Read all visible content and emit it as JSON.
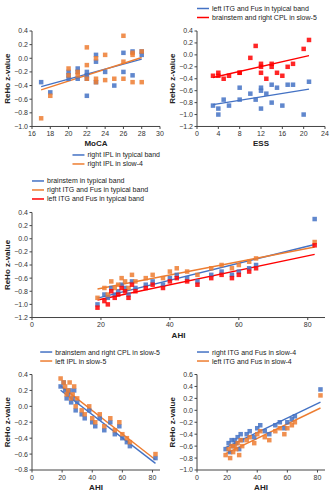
{
  "chart_data": [
    {
      "type": "scatter",
      "x_label": "MoCA",
      "y_label": "ReHo z-value",
      "xlim": [
        16,
        30
      ],
      "ylim": [
        -1.0,
        0.4
      ],
      "xticks": [
        16,
        18,
        20,
        22,
        24,
        26,
        28,
        30
      ],
      "yticks": [
        {
          "value": -1.0,
          "label": "−1.0"
        },
        {
          "value": -0.8,
          "label": "−0.8"
        },
        {
          "value": -0.6,
          "label": "−0.6"
        },
        {
          "value": -0.4,
          "label": "−0.4"
        },
        {
          "value": -0.2,
          "label": "−0.2"
        },
        {
          "value": 0.0,
          "label": "0.0"
        },
        0.2,
        0.4
      ],
      "legend": "lower right",
      "series": [
        {
          "type": "scatter",
          "marker": "square",
          "color": "#4472C4",
          "x": [
            17,
            18,
            20,
            20,
            20,
            21,
            21,
            21,
            22,
            22,
            22,
            22,
            23,
            23,
            23,
            24,
            25,
            26,
            26,
            27,
            27,
            28,
            28
          ],
          "values": [
            -0.35,
            -0.5,
            -0.25,
            -0.2,
            -0.3,
            -0.15,
            -0.2,
            -0.3,
            -0.2,
            -0.3,
            -0.25,
            -0.55,
            -0.35,
            0.05,
            -0.05,
            -0.2,
            -0.4,
            -0.2,
            0.08,
            -0.25,
            0.1,
            0.05,
            0.1
          ]
        },
        {
          "type": "line",
          "name": "right IPL in typical band",
          "color": "#4472C4",
          "x": [
            17,
            28
          ],
          "values": [
            -0.4158,
            -0.013
          ]
        },
        {
          "type": "scatter",
          "marker": "square",
          "color": "#ED7D31",
          "x": [
            17,
            18,
            20,
            20,
            21,
            21,
            22,
            22,
            22,
            23,
            23,
            23,
            24,
            24,
            25,
            26,
            26,
            26,
            27,
            27,
            27,
            28,
            28
          ],
          "values": [
            -0.88,
            -0.55,
            -0.25,
            -0.15,
            -0.25,
            -0.2,
            -0.3,
            0.16,
            -0.1,
            0.0,
            -0.35,
            -0.3,
            -0.32,
            0.05,
            -0.3,
            0.33,
            -0.3,
            -0.05,
            0.08,
            -0.35,
            0.05,
            0.1,
            -0.35
          ]
        },
        {
          "type": "line",
          "name": "right IPL in slow-4",
          "color": "#ED7D31",
          "x": [
            17,
            28
          ],
          "values": [
            -0.4642,
            0.0117
          ]
        }
      ]
    },
    {
      "type": "scatter",
      "x_label": "ESS",
      "y_label": "ReHo z-value",
      "xlim": [
        0,
        24
      ],
      "ylim": [
        -1.2,
        0.4
      ],
      "xticks": [
        0,
        4,
        8,
        12,
        16,
        20,
        24
      ],
      "yticks": [
        {
          "value": -1.2,
          "label": "−1.2"
        },
        {
          "value": -1.0,
          "label": "−1.0"
        },
        {
          "value": -0.8,
          "label": "−0.8"
        },
        {
          "value": -0.6,
          "label": "−0.6"
        },
        {
          "value": -0.4,
          "label": "−0.4"
        },
        {
          "value": -0.2,
          "label": "−0.2"
        },
        {
          "value": 0.0,
          "label": "0.0"
        },
        0.2,
        0.4
      ],
      "legend": "upper left",
      "series": [
        {
          "type": "scatter",
          "marker": "square",
          "color": "#4472C4",
          "x": [
            3,
            4,
            4,
            5,
            6,
            8,
            8,
            10,
            11,
            12,
            12,
            12,
            13,
            14,
            14,
            15,
            16,
            17,
            18,
            20,
            21
          ],
          "values": [
            -0.85,
            -0.9,
            -1.0,
            -0.75,
            -0.85,
            -0.75,
            -0.55,
            -0.65,
            -0.75,
            -0.6,
            -0.55,
            -0.9,
            -0.65,
            -0.8,
            -0.5,
            -0.55,
            -0.85,
            -0.5,
            -0.5,
            -1.0,
            -0.45
          ]
        },
        {
          "type": "line",
          "name": "left ITG and Fus in typical band",
          "color": "#4472C4",
          "x": [
            3,
            21
          ],
          "values": [
            -0.8337,
            -0.573
          ]
        },
        {
          "type": "scatter",
          "marker": "square",
          "color": "#FF0000",
          "x": [
            3,
            4,
            4,
            5,
            6,
            8,
            8,
            10,
            11,
            12,
            12,
            12,
            13,
            14,
            14,
            15,
            16,
            17,
            18,
            20,
            21
          ],
          "values": [
            -0.35,
            -0.35,
            -0.3,
            -0.4,
            -0.35,
            -0.3,
            -0.3,
            -0.05,
            0.15,
            -0.3,
            -0.15,
            -0.2,
            -0.4,
            -0.2,
            -0.15,
            -0.3,
            -0.35,
            -0.2,
            -0.15,
            0.1,
            0.25
          ]
        },
        {
          "type": "line",
          "name": "brainstem and right CPL in slow-5",
          "color": "#FF0000",
          "x": [
            3,
            21
          ],
          "values": [
            -0.3787,
            -0.0135
          ]
        }
      ]
    },
    {
      "type": "scatter",
      "x_label": "AHI",
      "y_label": "ReHo z-value",
      "xlim": [
        0,
        85
      ],
      "ylim": [
        -1.2,
        0.4
      ],
      "xticks": [
        0,
        20,
        40,
        60,
        80
      ],
      "yticks": [
        {
          "value": -1.2,
          "label": "−1.2"
        },
        {
          "value": -1.0,
          "label": "−1.0"
        },
        {
          "value": -0.8,
          "label": "−0.8"
        },
        {
          "value": -0.6,
          "label": "−0.6"
        },
        {
          "value": -0.4,
          "label": "−0.4"
        },
        {
          "value": -0.2,
          "label": "−0.2"
        },
        {
          "value": 0.0,
          "label": "0.0"
        },
        0.2,
        0.4
      ],
      "legend": "upper left",
      "series": [
        {
          "type": "scatter",
          "marker": "square",
          "color": "#4472C4",
          "x": [
            19,
            21,
            22,
            23,
            24,
            25,
            26,
            27,
            28,
            29,
            30,
            33,
            35,
            38,
            40,
            42,
            45,
            48,
            52,
            55,
            58,
            60,
            63,
            65,
            82
          ],
          "values": [
            -1.0,
            -0.85,
            -0.9,
            -0.75,
            -0.85,
            -0.8,
            -0.7,
            -0.75,
            -0.85,
            -0.65,
            -0.75,
            -0.7,
            -0.65,
            -0.7,
            -0.6,
            -0.55,
            -0.6,
            -0.65,
            -0.55,
            -0.5,
            -0.55,
            -0.5,
            -0.45,
            -0.4,
            0.3
          ]
        },
        {
          "type": "line",
          "name": "brainstem in typical band",
          "color": "#4472C4",
          "x": [
            19,
            82
          ],
          "values": [
            -0.9051,
            -0.0882
          ]
        },
        {
          "type": "scatter",
          "marker": "square",
          "color": "#ED7D31",
          "x": [
            19,
            21,
            22,
            23,
            24,
            25,
            26,
            27,
            28,
            29,
            30,
            33,
            35,
            38,
            40,
            42,
            45,
            48,
            52,
            55,
            58,
            60,
            63,
            65,
            82
          ],
          "values": [
            -0.9,
            -0.75,
            -0.85,
            -0.65,
            -0.75,
            -0.7,
            -0.6,
            -0.65,
            -0.75,
            -0.55,
            -0.65,
            -0.6,
            -0.55,
            -0.6,
            -0.5,
            -0.45,
            -0.5,
            -0.55,
            -0.45,
            -0.4,
            -0.45,
            -0.4,
            -0.35,
            -0.3,
            -0.05
          ]
        },
        {
          "type": "line",
          "name": "right ITG and Fus in typical band",
          "color": "#ED7D31",
          "x": [
            19,
            82
          ],
          "values": [
            -0.7653,
            -0.1251
          ]
        },
        {
          "type": "scatter",
          "marker": "square",
          "color": "#FF0000",
          "x": [
            19,
            21,
            22,
            23,
            24,
            25,
            26,
            27,
            28,
            29,
            30,
            33,
            35,
            38,
            40,
            42,
            45,
            48,
            52,
            55,
            58,
            60,
            63,
            65,
            82
          ],
          "values": [
            -1.05,
            -0.95,
            -1.0,
            -0.8,
            -0.9,
            -0.85,
            -0.75,
            -0.8,
            -0.9,
            -0.7,
            -0.8,
            -0.75,
            -0.7,
            -0.75,
            -0.65,
            -0.6,
            -0.65,
            -0.7,
            -0.6,
            -0.55,
            -0.6,
            -0.55,
            -0.5,
            -0.45,
            -0.1
          ]
        },
        {
          "type": "line",
          "name": "left ITG and Fus in typical band",
          "color": "#FF0000",
          "x": [
            19,
            82
          ],
          "values": [
            -0.9336,
            -0.2374
          ]
        }
      ]
    },
    {
      "type": "scatter",
      "x_label": "AHI",
      "y_label": "ReHo z-value",
      "xlim": [
        0,
        85
      ],
      "ylim": [
        -0.8,
        0.4
      ],
      "xticks": [
        0,
        20,
        40,
        60,
        80
      ],
      "yticks": [
        {
          "value": -0.8,
          "label": "−0.8"
        },
        {
          "value": -0.6,
          "label": "−0.6"
        },
        {
          "value": -0.4,
          "label": "−0.4"
        },
        {
          "value": -0.2,
          "label": "−0.2"
        },
        {
          "value": 0.0,
          "label": "0.0"
        },
        0.2,
        0.4
      ],
      "legend": "upper right",
      "series": [
        {
          "type": "scatter",
          "marker": "square",
          "color": "#4472C4",
          "x": [
            19,
            21,
            22,
            23,
            24,
            25,
            26,
            27,
            28,
            29,
            30,
            33,
            35,
            38,
            40,
            42,
            45,
            48,
            52,
            55,
            58,
            60,
            63,
            65,
            82
          ],
          "values": [
            0.25,
            0.3,
            0.2,
            0.1,
            0.15,
            0.2,
            0.05,
            0.1,
            0.2,
            -0.05,
            0.05,
            -0.1,
            -0.15,
            -0.05,
            -0.2,
            -0.25,
            -0.15,
            -0.3,
            -0.2,
            -0.35,
            -0.25,
            -0.4,
            -0.45,
            -0.5,
            -0.65
          ]
        },
        {
          "type": "line",
          "name": "brainstem and right CPL in slow-5",
          "color": "#4472C4",
          "x": [
            19,
            82
          ],
          "values": [
            0.2029,
            -0.7173
          ]
        },
        {
          "type": "scatter",
          "marker": "square",
          "color": "#ED7D31",
          "x": [
            19,
            21,
            22,
            23,
            24,
            25,
            26,
            27,
            28,
            29,
            30,
            33,
            35,
            38,
            40,
            42,
            45,
            48,
            52,
            55,
            58,
            60,
            63,
            65,
            82
          ],
          "values": [
            0.35,
            0.3,
            0.25,
            0.15,
            0.2,
            0.3,
            0.1,
            0.15,
            0.25,
            0.0,
            0.1,
            -0.05,
            -0.1,
            0.0,
            -0.15,
            -0.2,
            -0.1,
            -0.25,
            -0.15,
            -0.3,
            -0.2,
            -0.35,
            -0.4,
            -0.45,
            -0.6
          ]
        },
        {
          "type": "line",
          "name": "left IPL in slow-5",
          "color": "#ED7D31",
          "x": [
            19,
            82
          ],
          "values": [
            0.2574,
            -0.6705
          ]
        }
      ]
    },
    {
      "type": "scatter",
      "x_label": "AHI",
      "y_label": "ReHo z-value",
      "xlim": [
        0,
        85
      ],
      "ylim": [
        -1.0,
        0.6
      ],
      "xticks": [
        0,
        20,
        40,
        60,
        80
      ],
      "yticks": [
        {
          "value": -1.0,
          "label": "−1.0"
        },
        {
          "value": -0.8,
          "label": "−0.8"
        },
        {
          "value": -0.6,
          "label": "−0.6"
        },
        {
          "value": -0.4,
          "label": "−0.4"
        },
        {
          "value": -0.2,
          "label": "−0.2"
        },
        {
          "value": 0.0,
          "label": "0.0"
        },
        0.2,
        0.4,
        0.6
      ],
      "legend": "upper left",
      "series": [
        {
          "type": "scatter",
          "marker": "square",
          "color": "#4472C4",
          "x": [
            19,
            21,
            22,
            23,
            24,
            25,
            26,
            27,
            28,
            29,
            30,
            33,
            35,
            38,
            40,
            42,
            45,
            48,
            52,
            55,
            58,
            60,
            63,
            65,
            82
          ],
          "values": [
            -0.65,
            -0.55,
            -0.7,
            -0.5,
            -0.6,
            -0.5,
            -0.55,
            -0.45,
            -0.65,
            -0.4,
            -0.5,
            -0.4,
            -0.35,
            -0.45,
            -0.3,
            -0.25,
            -0.35,
            -0.4,
            -0.25,
            -0.2,
            -0.3,
            -0.2,
            -0.15,
            -0.1,
            0.35
          ]
        },
        {
          "type": "line",
          "name": "right ITG and Fus in slow-4",
          "color": "#4472C4",
          "x": [
            19,
            82
          ],
          "values": [
            -0.6262,
            0.139
          ]
        },
        {
          "type": "scatter",
          "marker": "square",
          "color": "#ED7D31",
          "x": [
            19,
            21,
            22,
            23,
            24,
            25,
            26,
            27,
            28,
            29,
            30,
            33,
            35,
            38,
            40,
            42,
            45,
            48,
            52,
            55,
            58,
            60,
            63,
            65,
            82
          ],
          "values": [
            -0.75,
            -0.65,
            -0.8,
            -0.6,
            -0.7,
            -0.6,
            -0.65,
            -0.55,
            -0.75,
            -0.5,
            -0.6,
            -0.5,
            -0.45,
            -0.55,
            -0.4,
            -0.35,
            -0.45,
            -0.5,
            -0.35,
            -0.3,
            -0.4,
            -0.3,
            -0.25,
            -0.2,
            0.25
          ]
        },
        {
          "type": "line",
          "name": "left ITG and Fus in slow-4",
          "color": "#ED7D31",
          "x": [
            19,
            82
          ],
          "values": [
            -0.7262,
            0.039
          ]
        }
      ]
    }
  ]
}
